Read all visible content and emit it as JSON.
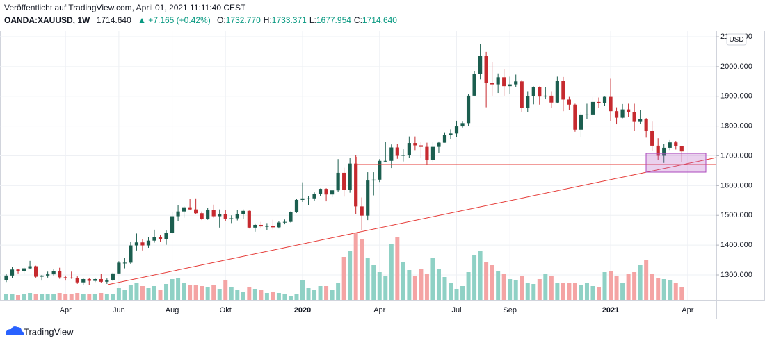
{
  "header": {
    "published": "Veröffentlicht auf TradingView.com, April 01, 2021 11:11:40 CEST",
    "symbol": "OANDA:XAUUSD, 1W",
    "last": "1714.640",
    "change": "▲ +7.165 (+0.42%)",
    "ohlc": [
      {
        "label": "O:",
        "value": "1732.770"
      },
      {
        "label": "H:",
        "value": "1733.371"
      },
      {
        "label": "L:",
        "value": "1677.954"
      },
      {
        "label": "C:",
        "value": "1714.640"
      }
    ]
  },
  "footer": {
    "brand": "TradingView"
  },
  "chart_data": {
    "type": "candlestick",
    "currency": "USD",
    "up_color": "#1b5e4f",
    "down_color": "#c62a2f",
    "volume_up_color": "#8fd1c5",
    "volume_down_color": "#f4a4a4",
    "ylim": [
      1216,
      2121
    ],
    "yticks": [
      {
        "value": 1300,
        "label": "1300.000"
      },
      {
        "value": 1400,
        "label": "1400.000"
      },
      {
        "value": 1500,
        "label": "1500.000"
      },
      {
        "value": 1600,
        "label": "1600.000"
      },
      {
        "value": 1700,
        "label": "1700.000"
      },
      {
        "value": 1800,
        "label": "1800.000"
      },
      {
        "value": 1900,
        "label": "1900.000"
      },
      {
        "value": 2000,
        "label": "2000.000"
      },
      {
        "value": 2100,
        "label": "2100.000"
      }
    ],
    "grid": true,
    "categories": [
      null,
      null,
      null,
      null,
      null,
      null,
      null,
      null,
      null,
      null,
      "Apr",
      null,
      null,
      null,
      null,
      null,
      null,
      null,
      null,
      "Jun",
      null,
      null,
      null,
      null,
      null,
      null,
      null,
      null,
      "Aug",
      null,
      null,
      null,
      null,
      null,
      null,
      null,
      null,
      "Okt",
      null,
      null,
      null,
      null,
      null,
      null,
      null,
      null,
      null,
      null,
      null,
      null,
      "2020",
      null,
      null,
      null,
      null,
      null,
      null,
      null,
      null,
      null,
      null,
      null,
      null,
      "Apr",
      null,
      null,
      null,
      null,
      null,
      null,
      null,
      null,
      null,
      null,
      null,
      null,
      "Jul",
      null,
      null,
      null,
      null,
      null,
      null,
      null,
      null,
      "Sep",
      null,
      null,
      null,
      null,
      null,
      null,
      null,
      null,
      null,
      null,
      null,
      null,
      null,
      null,
      null,
      null,
      "2021",
      null,
      null,
      null,
      null,
      null,
      null,
      null,
      null,
      null,
      null,
      null,
      null,
      "Apr"
    ],
    "open": [
      1282,
      1298,
      1318,
      1314,
      1322,
      1329,
      1294,
      1298,
      1302,
      1313,
      1292,
      1291,
      1290,
      1275,
      1286,
      1280,
      1286,
      1277,
      1283,
      1305,
      1341,
      1341,
      1399,
      1409,
      1399,
      1415,
      1426,
      1419,
      1440,
      1497,
      1513,
      1527,
      1520,
      1507,
      1488,
      1517,
      1497,
      1505,
      1489,
      1490,
      1505,
      1515,
      1459,
      1468,
      1463,
      1464,
      1460,
      1476,
      1478,
      1510,
      1552,
      1557,
      1557,
      1571,
      1589,
      1570,
      1584,
      1643,
      1585,
      1674,
      1530,
      1499,
      1617,
      1620,
      1683,
      1683,
      1728,
      1700,
      1703,
      1743,
      1735,
      1730,
      1685,
      1730,
      1744,
      1771,
      1775,
      1799,
      1810,
      1902,
      1975,
      2035,
      1944,
      1940,
      1964,
      1934,
      1940,
      1950,
      1862,
      1900,
      1930,
      1899,
      1902,
      1879,
      1951,
      1889,
      1872,
      1788,
      1839,
      1839,
      1881,
      1878,
      1898,
      1850,
      1828,
      1856,
      1848,
      1814,
      1824,
      1784,
      1734,
      1700,
      1727,
      1745,
      1732.77,
      null
    ],
    "high": [
      1303,
      1326,
      1320,
      1327,
      1347,
      1331,
      1300,
      1311,
      1320,
      1324,
      1298,
      1311,
      1295,
      1290,
      1289,
      1290,
      1303,
      1288,
      1308,
      1346,
      1358,
      1410,
      1439,
      1421,
      1428,
      1452,
      1434,
      1449,
      1510,
      1535,
      1531,
      1555,
      1557,
      1513,
      1524,
      1536,
      1520,
      1519,
      1500,
      1518,
      1520,
      1516,
      1473,
      1478,
      1474,
      1485,
      1481,
      1486,
      1513,
      1555,
      1611,
      1564,
      1577,
      1590,
      1591,
      1584,
      1689,
      1660,
      1692,
      1703,
      1560,
      1645,
      1645,
      1689,
      1747,
      1738,
      1739,
      1722,
      1765,
      1765,
      1745,
      1744,
      1745,
      1748,
      1779,
      1789,
      1818,
      1815,
      1907,
      1984,
      2075,
      2049,
      2015,
      1977,
      1992,
      1966,
      1973,
      1955,
      1917,
      1933,
      1933,
      1932,
      1917,
      1966,
      1965,
      1898,
      1875,
      1848,
      1875,
      1897,
      1896,
      1899,
      1959,
      1863,
      1874,
      1875,
      1875,
      1855,
      1827,
      1815,
      1759,
      1739,
      1755,
      1750,
      1733.371,
      null
    ],
    "low": [
      1276,
      1290,
      1305,
      1302,
      1320,
      1291,
      1281,
      1291,
      1298,
      1287,
      1281,
      1287,
      1270,
      1266,
      1267,
      1276,
      1274,
      1270,
      1279,
      1305,
      1322,
      1337,
      1382,
      1382,
      1391,
      1408,
      1412,
      1401,
      1437,
      1480,
      1492,
      1517,
      1505,
      1484,
      1485,
      1492,
      1459,
      1480,
      1474,
      1483,
      1488,
      1456,
      1445,
      1456,
      1451,
      1453,
      1456,
      1470,
      1476,
      1508,
      1545,
      1535,
      1548,
      1565,
      1547,
      1561,
      1579,
      1563,
      1576,
      1504,
      1451,
      1484,
      1567,
      1612,
      1680,
      1659,
      1690,
      1681,
      1694,
      1719,
      1694,
      1670,
      1678,
      1710,
      1744,
      1757,
      1763,
      1795,
      1800,
      1902,
      1957,
      1863,
      1902,
      1911,
      1902,
      1907,
      1930,
      1848,
      1848,
      1873,
      1872,
      1890,
      1860,
      1876,
      1850,
      1853,
      1781,
      1764,
      1823,
      1824,
      1860,
      1867,
      1816,
      1806,
      1826,
      1831,
      1785,
      1808,
      1761,
      1717,
      1687,
      1676,
      1719,
      1721,
      1677.954,
      null
    ],
    "close": [
      1298,
      1318,
      1314,
      1322,
      1329,
      1294,
      1298,
      1302,
      1313,
      1292,
      1291,
      1290,
      1275,
      1286,
      1280,
      1286,
      1277,
      1283,
      1305,
      1341,
      1341,
      1399,
      1409,
      1399,
      1415,
      1426,
      1419,
      1440,
      1497,
      1513,
      1527,
      1520,
      1507,
      1488,
      1517,
      1497,
      1505,
      1489,
      1490,
      1505,
      1515,
      1459,
      1468,
      1463,
      1464,
      1460,
      1476,
      1478,
      1510,
      1552,
      1557,
      1557,
      1571,
      1589,
      1570,
      1584,
      1643,
      1585,
      1674,
      1530,
      1499,
      1617,
      1620,
      1683,
      1683,
      1728,
      1700,
      1703,
      1743,
      1735,
      1730,
      1685,
      1730,
      1744,
      1771,
      1775,
      1799,
      1810,
      1902,
      1975,
      2035,
      1944,
      1940,
      1964,
      1934,
      1940,
      1950,
      1862,
      1900,
      1930,
      1899,
      1902,
      1879,
      1951,
      1889,
      1872,
      1788,
      1839,
      1839,
      1881,
      1878,
      1898,
      1850,
      1828,
      1856,
      1848,
      1814,
      1824,
      1784,
      1734,
      1700,
      1727,
      1745,
      1733,
      1714.64,
      null
    ],
    "volume": [
      9,
      8,
      7,
      8,
      10,
      8,
      8,
      9,
      9,
      10,
      9,
      8,
      10,
      8,
      9,
      9,
      10,
      8,
      9,
      17,
      14,
      22,
      25,
      20,
      17,
      20,
      14,
      23,
      30,
      32,
      25,
      22,
      22,
      20,
      18,
      22,
      16,
      28,
      18,
      14,
      12,
      18,
      16,
      14,
      10,
      12,
      10,
      8,
      6,
      8,
      28,
      17,
      14,
      20,
      20,
      14,
      24,
      62,
      70,
      97,
      88,
      60,
      50,
      40,
      35,
      80,
      90,
      55,
      43,
      35,
      45,
      38,
      60,
      45,
      33,
      25,
      16,
      20,
      40,
      65,
      70,
      55,
      50,
      42,
      38,
      30,
      28,
      35,
      25,
      23,
      30,
      38,
      35,
      25,
      24,
      25,
      25,
      22,
      25,
      20,
      18,
      40,
      42,
      34,
      25,
      38,
      40,
      50,
      58,
      38,
      32,
      30,
      28,
      25,
      18,
      null
    ]
  }
}
